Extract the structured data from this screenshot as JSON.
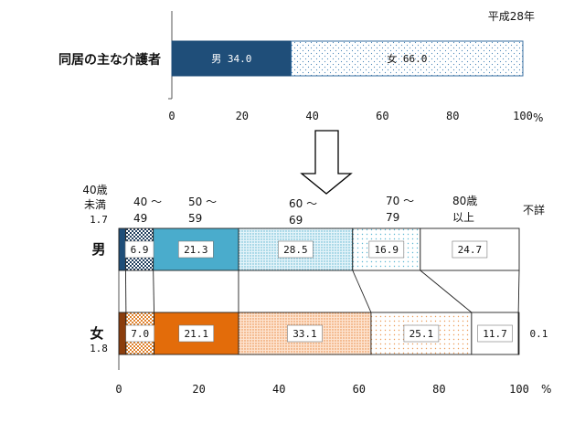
{
  "chart_data": [
    {
      "type": "bar",
      "stacked": true,
      "orientation": "horizontal",
      "year_note": "平成28年",
      "category": "同居の主な介護者",
      "series": [
        {
          "name": "男",
          "value": 34.0,
          "value_label": "34.0",
          "color": "#1f4e79"
        },
        {
          "name": "女",
          "value": 66.0,
          "value_label": "66.0",
          "color": "#dbeefa"
        }
      ],
      "xlim": [
        0,
        100
      ],
      "x_ticks": [
        "0",
        "20",
        "40",
        "60",
        "80",
        "100"
      ],
      "unit": "%"
    },
    {
      "type": "bar",
      "stacked": true,
      "orientation": "horizontal",
      "segment_labels": [
        {
          "lines": [
            "40歳",
            "未満"
          ]
        },
        {
          "lines": [
            "40 ～",
            "49"
          ]
        },
        {
          "lines": [
            "50 ～",
            "59"
          ]
        },
        {
          "lines": [
            "60 ～",
            "69"
          ]
        },
        {
          "lines": [
            "70 ～",
            "79"
          ]
        },
        {
          "lines": [
            "80歳",
            "以上"
          ]
        },
        {
          "lines": [
            "不詳"
          ]
        }
      ],
      "rows": [
        {
          "name": "男",
          "values": [
            1.7,
            6.9,
            21.3,
            28.5,
            16.9,
            24.7,
            0.0
          ],
          "labels": [
            "1.7",
            "6.9",
            "21.3",
            "28.5",
            "16.9",
            "24.7",
            ""
          ]
        },
        {
          "name": "女",
          "values": [
            1.8,
            7.0,
            21.1,
            33.1,
            25.1,
            11.7,
            0.1
          ],
          "labels": [
            "1.8",
            "7.0",
            "21.1",
            "33.1",
            "25.1",
            "11.7",
            "0.1"
          ]
        }
      ],
      "male_colors": [
        "#1f4e79",
        "#2f4f6f",
        "#4aaccc",
        "#cdeaf4",
        "#e6f3f9",
        "#ffffff",
        "#ffffff"
      ],
      "female_colors": [
        "#8b3d0c",
        "#f6c49a",
        "#e36c0a",
        "#fbd8bc",
        "#fde7d3",
        "#ffffff",
        "#4472c4"
      ],
      "xlim": [
        0,
        100
      ],
      "x_ticks": [
        "0",
        "20",
        "40",
        "60",
        "80",
        "100"
      ],
      "unit": "%"
    }
  ]
}
